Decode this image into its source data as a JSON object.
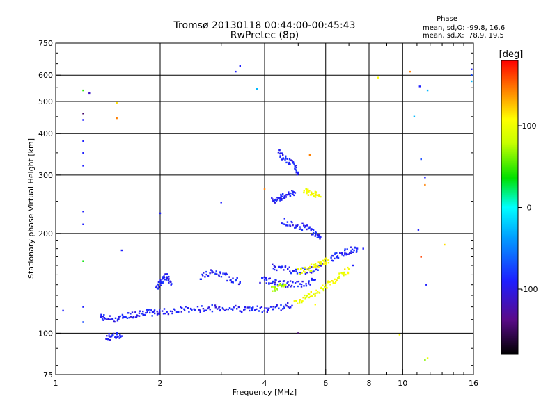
{
  "chart_data": {
    "type": "scatter",
    "title": "Tromsø 20130118 00:44:00-00:45:43",
    "subtitle": "RwPretec (8p)",
    "xlabel": "Frequency [MHz]",
    "ylabel": "Stationary phase Virtual Height [km]",
    "x_scale": "log",
    "y_scale": "log",
    "xlim": [
      1,
      16
    ],
    "ylim": [
      75,
      750
    ],
    "x_tick_labels": [
      "1",
      "2",
      "4",
      "6",
      "8",
      "10",
      "16"
    ],
    "y_tick_labels": [
      "75",
      "100",
      "200",
      "300",
      "400",
      "500",
      "600",
      "750"
    ],
    "grid": true,
    "phase_stats": {
      "title": "Phase",
      "line_o": "mean, sd,O: -99.8, 16.6",
      "line_x": "mean, sd,X:  78.9, 19.5"
    },
    "colorbar": {
      "label": "[deg]",
      "range": [
        -180,
        180
      ],
      "tick_labels": [
        "100",
        "0",
        "-100"
      ]
    },
    "traces": [
      {
        "name": "",
        "phase": -100,
        "points": [
          [
            1.35,
            112
          ],
          [
            1.4,
            111
          ],
          [
            1.5,
            110
          ],
          [
            1.6,
            113
          ],
          [
            1.7,
            114
          ],
          [
            1.8,
            116
          ],
          [
            1.9,
            115
          ],
          [
            2.0,
            116
          ],
          [
            2.2,
            117
          ],
          [
            2.4,
            118
          ],
          [
            2.6,
            118
          ],
          [
            2.8,
            119
          ],
          [
            3.0,
            119
          ],
          [
            3.3,
            119
          ],
          [
            3.6,
            118
          ],
          [
            3.9,
            118
          ],
          [
            4.2,
            119
          ],
          [
            4.5,
            120
          ],
          [
            4.8,
            121
          ]
        ]
      },
      {
        "name": "",
        "phase": -100,
        "points": [
          [
            1.4,
            98
          ],
          [
            1.45,
            97
          ],
          [
            1.5,
            99
          ],
          [
            1.55,
            98
          ]
        ]
      },
      {
        "name": "",
        "phase": -100,
        "points": [
          [
            1.95,
            138
          ],
          [
            2.0,
            142
          ],
          [
            2.05,
            146
          ],
          [
            2.1,
            150
          ],
          [
            2.15,
            140
          ]
        ]
      },
      {
        "name": "",
        "phase": -100,
        "points": [
          [
            2.6,
            148
          ],
          [
            2.8,
            152
          ],
          [
            3.0,
            150
          ],
          [
            3.2,
            146
          ],
          [
            3.4,
            143
          ]
        ]
      },
      {
        "name": "",
        "phase": -100,
        "points": [
          [
            3.9,
            145
          ],
          [
            4.1,
            144
          ],
          [
            4.3,
            142
          ],
          [
            4.6,
            141
          ],
          [
            4.9,
            140
          ],
          [
            5.3,
            141
          ],
          [
            5.6,
            145
          ]
        ]
      },
      {
        "name": "",
        "phase": -100,
        "points": [
          [
            4.2,
            158
          ],
          [
            4.5,
            157
          ],
          [
            4.8,
            155
          ],
          [
            5.2,
            154
          ],
          [
            5.6,
            156
          ],
          [
            5.9,
            162
          ]
        ]
      },
      {
        "name": "",
        "phase": -100,
        "points": [
          [
            4.2,
            250
          ],
          [
            4.4,
            255
          ],
          [
            4.5,
            258
          ],
          [
            4.7,
            262
          ],
          [
            4.9,
            265
          ]
        ]
      },
      {
        "name": "",
        "phase": -100,
        "points": [
          [
            4.5,
            218
          ],
          [
            4.8,
            213
          ],
          [
            5.1,
            210
          ],
          [
            5.4,
            205
          ],
          [
            5.6,
            200
          ],
          [
            5.8,
            195
          ]
        ]
      },
      {
        "name": "",
        "phase": -100,
        "points": [
          [
            4.4,
            355
          ],
          [
            4.5,
            340
          ],
          [
            4.7,
            330
          ],
          [
            4.9,
            320
          ],
          [
            5.0,
            305
          ]
        ]
      },
      {
        "name": "",
        "phase": -100,
        "points": [
          [
            6.2,
            168
          ],
          [
            6.5,
            172
          ],
          [
            6.8,
            175
          ],
          [
            7.1,
            178
          ],
          [
            7.4,
            180
          ]
        ]
      },
      {
        "name": "",
        "phase": 95,
        "points": [
          [
            4.9,
            125
          ],
          [
            5.2,
            127
          ],
          [
            5.5,
            131
          ],
          [
            5.8,
            136
          ],
          [
            6.1,
            140
          ],
          [
            6.4,
            144
          ],
          [
            6.7,
            150
          ],
          [
            7.0,
            156
          ]
        ]
      },
      {
        "name": "",
        "phase": 95,
        "points": [
          [
            5.0,
            153
          ],
          [
            5.3,
            156
          ],
          [
            5.6,
            159
          ],
          [
            5.9,
            162
          ],
          [
            6.1,
            166
          ]
        ]
      },
      {
        "name": "",
        "phase": 95,
        "points": [
          [
            5.2,
            270
          ],
          [
            5.4,
            265
          ],
          [
            5.6,
            262
          ],
          [
            5.8,
            258
          ]
        ]
      },
      {
        "name": "",
        "phase": 70,
        "points": [
          [
            4.2,
            135
          ],
          [
            4.4,
            138
          ],
          [
            4.6,
            140
          ]
        ]
      }
    ],
    "scatter": [
      {
        "x": 1.2,
        "y": 540,
        "phase": 40
      },
      {
        "x": 1.25,
        "y": 530,
        "phase": -120
      },
      {
        "x": 1.2,
        "y": 460,
        "phase": -150
      },
      {
        "x": 1.2,
        "y": 440,
        "phase": -100
      },
      {
        "x": 1.2,
        "y": 380,
        "phase": -100
      },
      {
        "x": 1.2,
        "y": 350,
        "phase": -100
      },
      {
        "x": 1.2,
        "y": 320,
        "phase": -100
      },
      {
        "x": 1.2,
        "y": 233,
        "phase": -100
      },
      {
        "x": 1.2,
        "y": 213,
        "phase": -100
      },
      {
        "x": 1.2,
        "y": 165,
        "phase": 30
      },
      {
        "x": 1.2,
        "y": 120,
        "phase": -100
      },
      {
        "x": 1.2,
        "y": 108,
        "phase": -80
      },
      {
        "x": 1.5,
        "y": 495,
        "phase": 110
      },
      {
        "x": 1.5,
        "y": 445,
        "phase": 140
      },
      {
        "x": 1.55,
        "y": 178,
        "phase": -100
      },
      {
        "x": 1.05,
        "y": 117,
        "phase": -100
      },
      {
        "x": 2.0,
        "y": 230,
        "phase": -100
      },
      {
        "x": 3.0,
        "y": 248,
        "phase": -100
      },
      {
        "x": 3.3,
        "y": 615,
        "phase": -100
      },
      {
        "x": 3.4,
        "y": 640,
        "phase": -100
      },
      {
        "x": 3.8,
        "y": 545,
        "phase": -30
      },
      {
        "x": 4.0,
        "y": 272,
        "phase": 140
      },
      {
        "x": 5.4,
        "y": 345,
        "phase": 140
      },
      {
        "x": 8.5,
        "y": 590,
        "phase": 100
      },
      {
        "x": 10.5,
        "y": 615,
        "phase": 140
      },
      {
        "x": 10.8,
        "y": 450,
        "phase": -30
      },
      {
        "x": 11.2,
        "y": 555,
        "phase": -100
      },
      {
        "x": 11.8,
        "y": 540,
        "phase": -30
      },
      {
        "x": 11.3,
        "y": 335,
        "phase": -80
      },
      {
        "x": 11.6,
        "y": 295,
        "phase": -100
      },
      {
        "x": 11.6,
        "y": 280,
        "phase": 140
      },
      {
        "x": 11.1,
        "y": 205,
        "phase": -100
      },
      {
        "x": 11.3,
        "y": 170,
        "phase": 160
      },
      {
        "x": 11.7,
        "y": 140,
        "phase": -100
      },
      {
        "x": 13.2,
        "y": 185,
        "phase": 110
      },
      {
        "x": 15.8,
        "y": 625,
        "phase": -100
      },
      {
        "x": 15.8,
        "y": 600,
        "phase": -80
      },
      {
        "x": 15.8,
        "y": 575,
        "phase": -30
      },
      {
        "x": 9.8,
        "y": 99,
        "phase": 100
      },
      {
        "x": 11.6,
        "y": 83,
        "phase": 60
      },
      {
        "x": 11.8,
        "y": 84,
        "phase": 90
      },
      {
        "x": 5.0,
        "y": 100,
        "phase": -150
      },
      {
        "x": 5.6,
        "y": 122,
        "phase": 100
      },
      {
        "x": 7.2,
        "y": 160,
        "phase": -100
      },
      {
        "x": 7.7,
        "y": 180,
        "phase": -100
      }
    ]
  }
}
